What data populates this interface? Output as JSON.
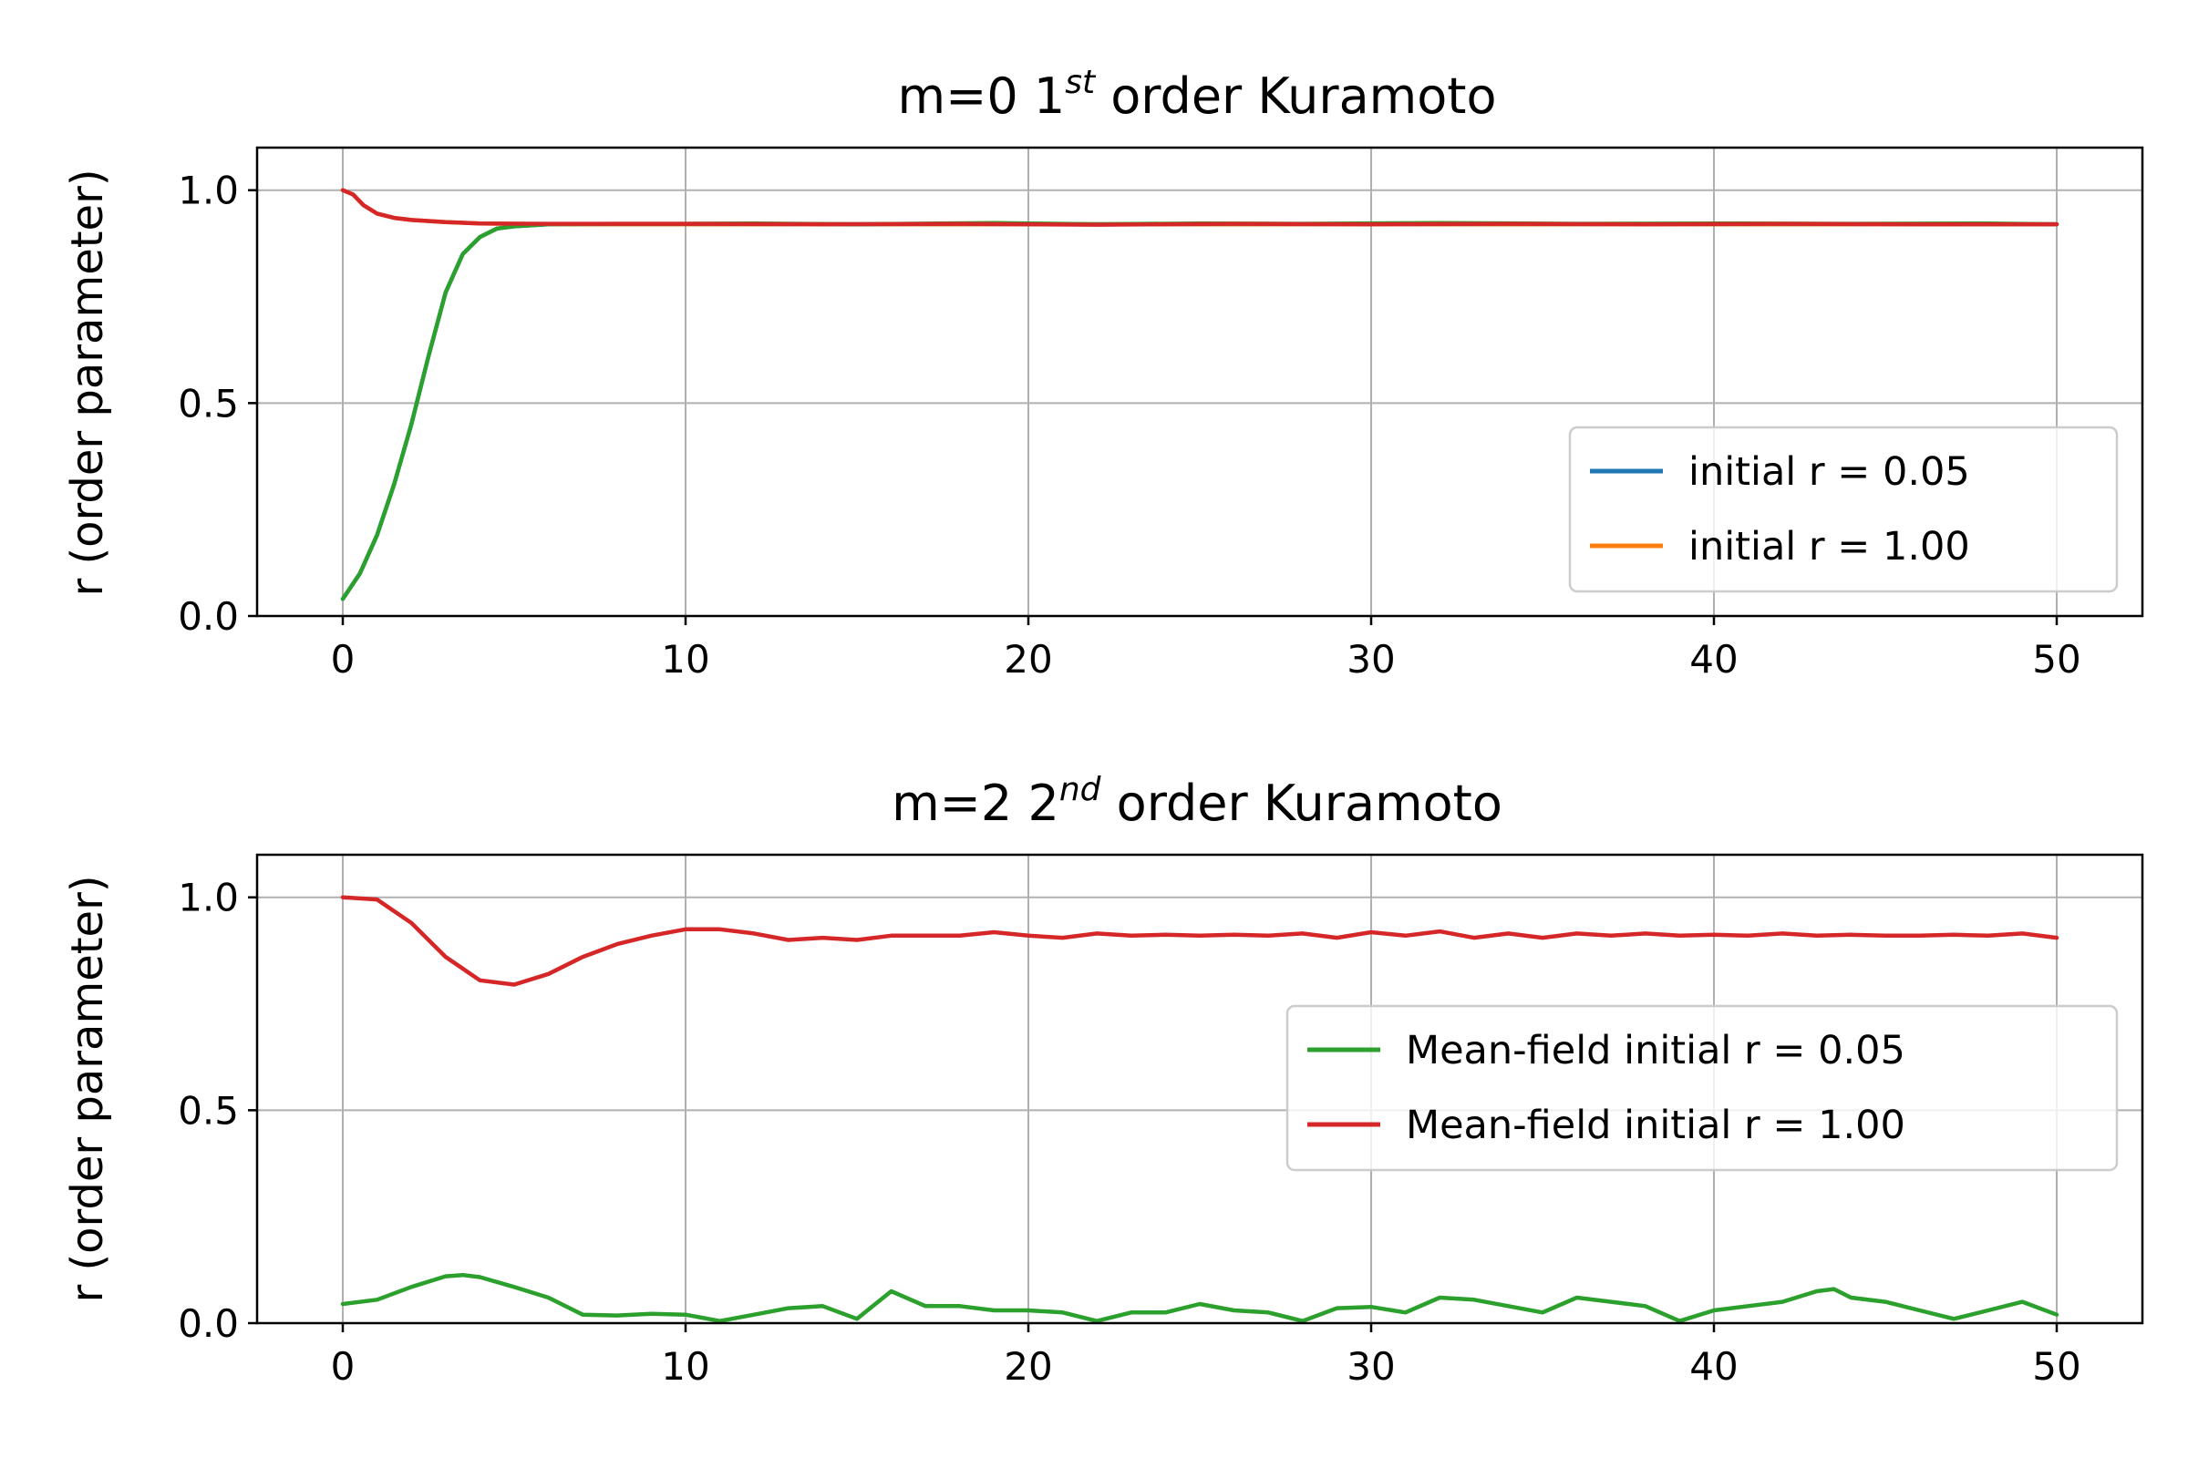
{
  "chart_data": [
    {
      "type": "line",
      "title": "m=0 1",
      "title_sup": "st",
      "title_suffix": " order Kuramoto",
      "xlabel": "",
      "ylabel": "r (order parameter)",
      "xlim": [
        -2.5,
        52.5
      ],
      "ylim": [
        0.0,
        1.1
      ],
      "xticks": [
        0,
        10,
        20,
        30,
        40,
        50
      ],
      "xtick_labels": [
        "0",
        "10",
        "20",
        "30",
        "40",
        "50"
      ],
      "yticks": [
        0.0,
        0.5,
        1.0
      ],
      "ytick_labels": [
        "0.0",
        "0.5",
        "1.0"
      ],
      "grid": true,
      "legend_position": "center-right",
      "colors": {
        "blue": "#1f77b4",
        "orange": "#ff7f0e",
        "green": "#2ca02c",
        "red": "#d62728"
      },
      "series": [
        {
          "name": "initial r = 0.05",
          "color": "#1f77b4",
          "in_legend": true,
          "x": [
            0,
            0.5,
            1,
            1.5,
            2,
            2.5,
            3,
            3.5,
            4,
            4.5,
            5,
            6,
            8,
            10,
            20,
            30,
            40,
            50
          ],
          "y": [
            0.04,
            0.1,
            0.19,
            0.31,
            0.45,
            0.61,
            0.76,
            0.85,
            0.89,
            0.91,
            0.915,
            0.92,
            0.92,
            0.92,
            0.92,
            0.92,
            0.92,
            0.92
          ]
        },
        {
          "name": "initial r = 1.00",
          "color": "#ff7f0e",
          "in_legend": true,
          "x": [
            0,
            0.3,
            0.6,
            1,
            1.5,
            2,
            3,
            4,
            6,
            10,
            20,
            30,
            40,
            50
          ],
          "y": [
            1.0,
            0.99,
            0.965,
            0.945,
            0.935,
            0.93,
            0.925,
            0.922,
            0.92,
            0.92,
            0.92,
            0.92,
            0.92,
            0.92
          ]
        },
        {
          "name": "",
          "color": "#2ca02c",
          "in_legend": false,
          "x": [
            0,
            0.5,
            1,
            1.5,
            2,
            2.5,
            3,
            3.5,
            4,
            4.5,
            5,
            6,
            8,
            10,
            12,
            15,
            19,
            22,
            25,
            28,
            32,
            36,
            40,
            44,
            48,
            50
          ],
          "y": [
            0.04,
            0.1,
            0.19,
            0.31,
            0.45,
            0.61,
            0.76,
            0.85,
            0.89,
            0.91,
            0.915,
            0.92,
            0.921,
            0.921,
            0.922,
            0.92,
            0.923,
            0.92,
            0.922,
            0.921,
            0.923,
            0.921,
            0.922,
            0.921,
            0.922,
            0.92
          ]
        },
        {
          "name": "",
          "color": "#d62728",
          "in_legend": false,
          "x": [
            0,
            0.3,
            0.6,
            1,
            1.5,
            2,
            3,
            4,
            6,
            10,
            14,
            18,
            22,
            26,
            30,
            34,
            38,
            42,
            46,
            50
          ],
          "y": [
            1.0,
            0.99,
            0.965,
            0.945,
            0.935,
            0.93,
            0.925,
            0.922,
            0.921,
            0.921,
            0.92,
            0.921,
            0.919,
            0.921,
            0.92,
            0.921,
            0.92,
            0.921,
            0.92,
            0.92
          ]
        }
      ]
    },
    {
      "type": "line",
      "title": "m=2 2",
      "title_sup": "nd",
      "title_suffix": " order Kuramoto",
      "xlabel": "",
      "ylabel": "r (order parameter)",
      "xlim": [
        -2.5,
        52.5
      ],
      "ylim": [
        0.0,
        1.1
      ],
      "xticks": [
        0,
        10,
        20,
        30,
        40,
        50
      ],
      "xtick_labels": [
        "0",
        "10",
        "20",
        "30",
        "40",
        "50"
      ],
      "yticks": [
        0.0,
        0.5,
        1.0
      ],
      "ytick_labels": [
        "0.0",
        "0.5",
        "1.0"
      ],
      "grid": true,
      "legend_position": "center-right",
      "colors": {
        "green": "#2ca02c",
        "red": "#d62728"
      },
      "series": [
        {
          "name": "Mean-field initial r = 0.05",
          "color": "#2ca02c",
          "in_legend": true,
          "x": [
            0,
            1,
            2,
            3,
            3.5,
            4,
            5,
            6,
            7,
            8,
            9,
            10,
            11,
            12,
            13,
            14,
            15,
            16,
            17,
            18,
            19,
            20,
            21,
            22,
            23,
            24,
            25,
            26,
            27,
            28,
            29,
            30,
            31,
            32,
            33,
            34,
            35,
            36,
            37,
            38,
            39,
            40,
            41,
            42,
            43,
            43.5,
            44,
            45,
            46,
            47,
            48,
            49,
            50
          ],
          "y": [
            0.045,
            0.055,
            0.085,
            0.11,
            0.113,
            0.108,
            0.085,
            0.06,
            0.02,
            0.018,
            0.022,
            0.02,
            0.005,
            0.02,
            0.035,
            0.04,
            0.01,
            0.075,
            0.04,
            0.04,
            0.03,
            0.03,
            0.025,
            0.005,
            0.025,
            0.025,
            0.045,
            0.03,
            0.025,
            0.005,
            0.035,
            0.038,
            0.025,
            0.06,
            0.055,
            0.04,
            0.025,
            0.06,
            0.05,
            0.04,
            0.005,
            0.03,
            0.04,
            0.05,
            0.075,
            0.08,
            0.06,
            0.05,
            0.03,
            0.01,
            0.03,
            0.05,
            0.02
          ]
        },
        {
          "name": "Mean-field initial r = 1.00",
          "color": "#d62728",
          "in_legend": true,
          "x": [
            0,
            1,
            2,
            3,
            4,
            5,
            6,
            7,
            8,
            9,
            10,
            11,
            12,
            13,
            14,
            15,
            16,
            17,
            18,
            19,
            20,
            21,
            22,
            23,
            24,
            25,
            26,
            27,
            28,
            29,
            30,
            31,
            32,
            33,
            34,
            35,
            36,
            37,
            38,
            39,
            40,
            41,
            42,
            43,
            44,
            45,
            46,
            47,
            48,
            49,
            50
          ],
          "y": [
            1.0,
            0.995,
            0.94,
            0.86,
            0.805,
            0.795,
            0.82,
            0.86,
            0.89,
            0.91,
            0.925,
            0.925,
            0.915,
            0.9,
            0.905,
            0.9,
            0.91,
            0.91,
            0.91,
            0.918,
            0.91,
            0.905,
            0.915,
            0.91,
            0.912,
            0.91,
            0.912,
            0.91,
            0.915,
            0.905,
            0.918,
            0.91,
            0.92,
            0.905,
            0.915,
            0.905,
            0.915,
            0.91,
            0.915,
            0.91,
            0.912,
            0.91,
            0.915,
            0.91,
            0.912,
            0.91,
            0.91,
            0.912,
            0.91,
            0.915,
            0.905
          ]
        }
      ]
    }
  ]
}
